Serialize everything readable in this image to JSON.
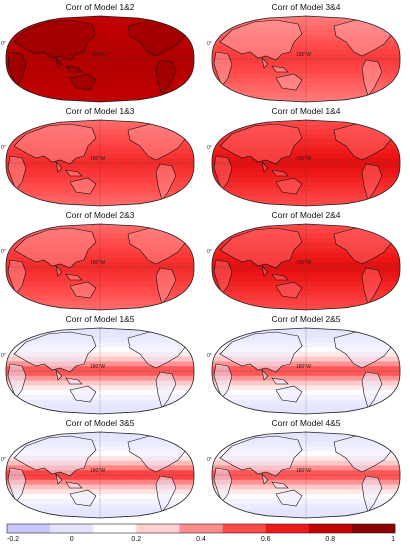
{
  "panels": [
    {
      "title": "Corr of Model 1&2",
      "level": 0.9,
      "variant": "strong"
    },
    {
      "title": "Corr of Model 3&4",
      "level": 0.55,
      "variant": "medium"
    },
    {
      "title": "Corr of Model 1&3",
      "level": 0.6,
      "variant": "medium"
    },
    {
      "title": "Corr of Model 1&4",
      "level": 0.7,
      "variant": "medium"
    },
    {
      "title": "Corr of Model 2&3",
      "level": 0.6,
      "variant": "medium"
    },
    {
      "title": "Corr of Model 2&4",
      "level": 0.7,
      "variant": "medium"
    },
    {
      "title": "Corr of Model 1&5",
      "level": 0.4,
      "variant": "weak"
    },
    {
      "title": "Corr of Model 2&5",
      "level": 0.4,
      "variant": "weak"
    },
    {
      "title": "Corr of Model 3&5",
      "level": 0.45,
      "variant": "weak"
    },
    {
      "title": "Corr of Model 4&5",
      "level": 0.4,
      "variant": "weak"
    }
  ],
  "map_labels": {
    "center_lon": "180°W",
    "equator": "0°"
  },
  "colorbar": {
    "ticks": [
      "-0.2",
      "0",
      "0.2",
      "0.4",
      "0.6",
      "0.8",
      "1"
    ],
    "range": [
      -0.2,
      1
    ],
    "colors": [
      "#c8c8ff",
      "#e4e4ff",
      "#ffffff",
      "#ffd0d0",
      "#ff8c8c",
      "#ff4a4a",
      "#ee1818",
      "#c40000",
      "#8c0000"
    ]
  }
}
